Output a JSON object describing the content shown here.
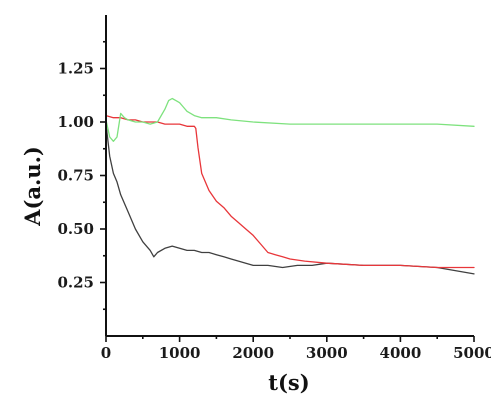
{
  "chart_data": {
    "type": "line",
    "title": "",
    "xlabel": "t(s)",
    "ylabel": "A(a.u.)",
    "xlim": [
      0,
      5000
    ],
    "ylim": [
      0,
      1.5
    ],
    "xticks": [
      0,
      1000,
      2000,
      3000,
      4000,
      5000
    ],
    "yticks": [
      0.25,
      0.5,
      0.75,
      1.0,
      1.25
    ],
    "ytick_labels": [
      "0.25",
      "0.50",
      "0.75",
      "1.00",
      "1.25"
    ],
    "xtick_labels": [
      "0",
      "1000",
      "2000",
      "3000",
      "4000",
      "5000"
    ],
    "grid": false,
    "legend": "none",
    "series": [
      {
        "color": "#404040",
        "x": [
          0,
          50,
          100,
          150,
          200,
          300,
          400,
          500,
          600,
          650,
          700,
          800,
          900,
          1000,
          1100,
          1200,
          1300,
          1400,
          1500,
          1600,
          1700,
          1800,
          1900,
          2000,
          2200,
          2400,
          2600,
          2800,
          3000,
          3500,
          4000,
          4500,
          5000
        ],
        "y": [
          0.99,
          0.84,
          0.76,
          0.72,
          0.66,
          0.58,
          0.5,
          0.44,
          0.4,
          0.37,
          0.39,
          0.41,
          0.42,
          0.41,
          0.4,
          0.4,
          0.39,
          0.39,
          0.38,
          0.37,
          0.36,
          0.35,
          0.34,
          0.33,
          0.33,
          0.32,
          0.33,
          0.33,
          0.34,
          0.33,
          0.33,
          0.32,
          0.29
        ]
      },
      {
        "color": "#e8363a",
        "x": [
          0,
          100,
          200,
          300,
          400,
          500,
          600,
          700,
          800,
          900,
          1000,
          1100,
          1200,
          1220,
          1250,
          1300,
          1400,
          1500,
          1600,
          1700,
          1800,
          1900,
          2000,
          2100,
          2200,
          2300,
          2400,
          2500,
          2700,
          3000,
          3500,
          4000,
          4500,
          5000
        ],
        "y": [
          1.03,
          1.02,
          1.02,
          1.01,
          1.01,
          1.0,
          1.0,
          1.0,
          0.99,
          0.99,
          0.99,
          0.98,
          0.98,
          0.97,
          0.88,
          0.76,
          0.68,
          0.63,
          0.6,
          0.56,
          0.53,
          0.5,
          0.47,
          0.43,
          0.39,
          0.38,
          0.37,
          0.36,
          0.35,
          0.34,
          0.33,
          0.33,
          0.32,
          0.32
        ]
      },
      {
        "color": "#7ee27e",
        "x": [
          0,
          50,
          100,
          150,
          200,
          250,
          300,
          400,
          500,
          600,
          700,
          800,
          850,
          900,
          950,
          1000,
          1050,
          1100,
          1200,
          1300,
          1500,
          1700,
          2000,
          2500,
          3000,
          3500,
          4000,
          4500,
          5000
        ],
        "y": [
          1.01,
          0.93,
          0.91,
          0.93,
          1.04,
          1.02,
          1.01,
          1.0,
          1.0,
          0.99,
          1.0,
          1.06,
          1.1,
          1.11,
          1.1,
          1.09,
          1.07,
          1.05,
          1.03,
          1.02,
          1.02,
          1.01,
          1.0,
          0.99,
          0.99,
          0.99,
          0.99,
          0.99,
          0.98
        ]
      }
    ]
  }
}
